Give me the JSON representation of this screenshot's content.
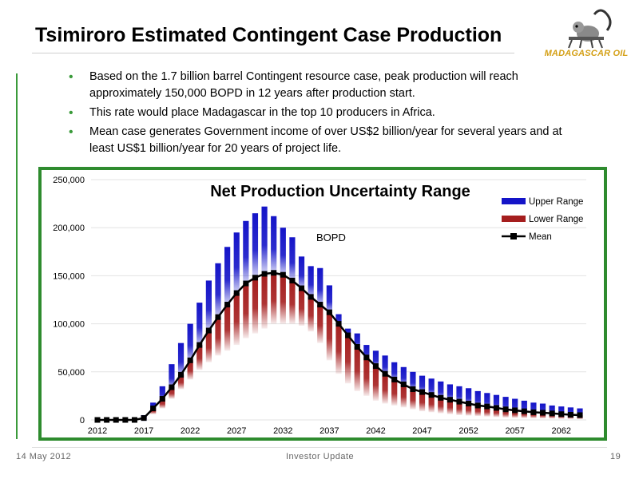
{
  "slide": {
    "title": "Tsimiroro Estimated Contingent Case Production",
    "logo_text": "MADAGASCAR OIL",
    "bullets": [
      "Based on the 1.7 billion barrel Contingent resource case, peak production will reach approximately 150,000 BOPD in 12 years after production start.",
      "This rate would place Madagascar in the top 10 producers in Africa.",
      "Mean case generates Government income of over US$2 billion/year for several years and at least US$1 billion/year for 20 years of project life."
    ],
    "bullet_glyph": "•"
  },
  "footer": {
    "date": "14 May 2012",
    "center": "Investor Update",
    "page": "19"
  },
  "chart_data": {
    "type": "bar",
    "title": "Net Production Uncertainty Range",
    "annotation": "BOPD",
    "x": [
      2012,
      2013,
      2014,
      2015,
      2016,
      2017,
      2018,
      2019,
      2020,
      2021,
      2022,
      2023,
      2024,
      2025,
      2026,
      2027,
      2028,
      2029,
      2030,
      2031,
      2032,
      2033,
      2034,
      2035,
      2036,
      2037,
      2038,
      2039,
      2040,
      2041,
      2042,
      2043,
      2044,
      2045,
      2046,
      2047,
      2048,
      2049,
      2050,
      2051,
      2052,
      2053,
      2054,
      2055,
      2056,
      2057,
      2058,
      2059,
      2060,
      2061,
      2062,
      2063,
      2064
    ],
    "xticks": [
      "2012",
      "2017",
      "2022",
      "2027",
      "2032",
      "2037",
      "2042",
      "2047",
      "2052",
      "2057",
      "2062"
    ],
    "yticks": [
      "0",
      "50,000",
      "100,000",
      "150,000",
      "200,000",
      "250,000"
    ],
    "ylim": [
      0,
      250000
    ],
    "legend_position": "top-right",
    "colors": {
      "upper": "#1414c8",
      "lower": "#a51e1e",
      "mean": "#000000"
    },
    "series": [
      {
        "name": "Upper Range",
        "values": [
          0,
          0,
          0,
          0,
          0,
          5000,
          18000,
          35000,
          58000,
          80000,
          100000,
          122000,
          145000,
          163000,
          180000,
          195000,
          207000,
          215000,
          222000,
          212000,
          200000,
          190000,
          170000,
          160000,
          158000,
          140000,
          110000,
          95000,
          90000,
          78000,
          72000,
          67000,
          60000,
          55000,
          50000,
          46000,
          43000,
          40000,
          37000,
          35000,
          33000,
          30000,
          28000,
          26000,
          24000,
          22000,
          20000,
          18000,
          17000,
          15000,
          14000,
          13000,
          12000
        ]
      },
      {
        "name": "Lower Range",
        "values": [
          0,
          0,
          0,
          0,
          0,
          1000,
          6000,
          12000,
          22000,
          32000,
          42000,
          52000,
          60000,
          67000,
          72000,
          78000,
          85000,
          90000,
          95000,
          100000,
          100000,
          100000,
          98000,
          92000,
          80000,
          62000,
          48000,
          38000,
          30000,
          25000,
          20000,
          17000,
          15000,
          13000,
          11000,
          9000,
          8000,
          7000,
          6000,
          5000,
          4500,
          4000,
          3500,
          3000,
          2500,
          2200,
          2000,
          1800,
          1600,
          1400,
          1200,
          1000,
          800
        ]
      },
      {
        "name": "Mean",
        "values": [
          0,
          0,
          0,
          0,
          0,
          2000,
          12000,
          22000,
          34000,
          47000,
          62000,
          78000,
          93000,
          107000,
          120000,
          132000,
          142000,
          148000,
          152000,
          153000,
          151000,
          145000,
          137000,
          128000,
          120000,
          112000,
          100000,
          88000,
          76000,
          65000,
          56000,
          48000,
          42000,
          37000,
          32000,
          29000,
          26000,
          23000,
          21000,
          19000,
          17000,
          15000,
          14000,
          12500,
          11000,
          10000,
          9000,
          8000,
          7500,
          6800,
          6000,
          5400,
          5000
        ]
      }
    ]
  }
}
